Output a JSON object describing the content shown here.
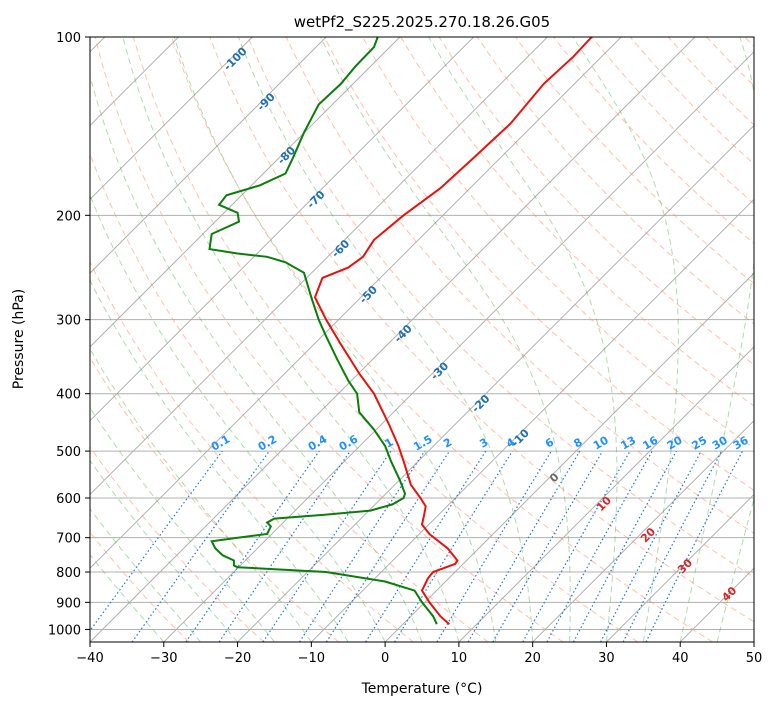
{
  "chart_data": {
    "type": "line",
    "title": "wetPf2_S225.2025.270.18.26.G05",
    "xlabel": "Temperature (°C)",
    "ylabel": "Pressure (hPa)",
    "xlim": [
      -40,
      50
    ],
    "ylim": [
      1050,
      100
    ],
    "y_scale": "log",
    "grid": true,
    "x_ticks": [
      -40,
      -30,
      -20,
      -10,
      0,
      10,
      20,
      30,
      40,
      50
    ],
    "y_ticks": [
      1000,
      900,
      800,
      700,
      600,
      500,
      400,
      300,
      200,
      100
    ],
    "series": [
      {
        "color": "#e8120c",
        "points": [
          [
            8.7,
            980
          ],
          [
            7.5,
            950
          ],
          [
            6.0,
            900
          ],
          [
            5.0,
            860
          ],
          [
            5.8,
            820
          ],
          [
            6.5,
            800
          ],
          [
            9.5,
            775
          ],
          [
            9.8,
            765
          ],
          [
            8.5,
            730
          ],
          [
            6.0,
            690
          ],
          [
            5.0,
            665
          ],
          [
            5.3,
            640
          ],
          [
            5.5,
            620
          ],
          [
            4.8,
            600
          ],
          [
            3.5,
            570
          ],
          [
            2.5,
            520
          ],
          [
            1.8,
            490
          ],
          [
            0.5,
            450
          ],
          [
            -1.5,
            400
          ],
          [
            -3.5,
            370
          ],
          [
            -6.0,
            330
          ],
          [
            -8.0,
            300
          ],
          [
            -9.5,
            275
          ],
          [
            -8.5,
            255
          ],
          [
            -5.0,
            245
          ],
          [
            -3.0,
            235
          ],
          [
            -1.5,
            220
          ],
          [
            2.5,
            200
          ],
          [
            7.5,
            180
          ],
          [
            12.0,
            160
          ],
          [
            17.0,
            140
          ],
          [
            21.5,
            120
          ],
          [
            25.5,
            108
          ],
          [
            28.0,
            100
          ]
        ]
      },
      {
        "color": "#0a7d0a",
        "points": [
          [
            7.0,
            980
          ],
          [
            6.5,
            950
          ],
          [
            5.0,
            900
          ],
          [
            4.0,
            860
          ],
          [
            0.0,
            830
          ],
          [
            -8.0,
            800
          ],
          [
            -20.0,
            785
          ],
          [
            -20.5,
            780
          ],
          [
            -20.5,
            765
          ],
          [
            -22.0,
            750
          ],
          [
            -23.0,
            730
          ],
          [
            -23.5,
            710
          ],
          [
            -20.0,
            700
          ],
          [
            -16.0,
            690
          ],
          [
            -15.5,
            670
          ],
          [
            -16.0,
            660
          ],
          [
            -15.0,
            650
          ],
          [
            -8.0,
            640
          ],
          [
            -2.0,
            630
          ],
          [
            1.0,
            615
          ],
          [
            2.5,
            600
          ],
          [
            2.7,
            590
          ],
          [
            2.0,
            560
          ],
          [
            0.8,
            520
          ],
          [
            0.0,
            490
          ],
          [
            -1.5,
            460
          ],
          [
            -3.5,
            430
          ],
          [
            -3.8,
            400
          ],
          [
            -5.0,
            380
          ],
          [
            -6.5,
            350
          ],
          [
            -8.0,
            320
          ],
          [
            -9.0,
            300
          ],
          [
            -10.0,
            275
          ],
          [
            -11.0,
            250
          ],
          [
            -13.5,
            240
          ],
          [
            -16.0,
            235
          ],
          [
            -20.0,
            232
          ],
          [
            -23.8,
            228
          ],
          [
            -23.5,
            215
          ],
          [
            -19.8,
            205
          ],
          [
            -20.0,
            198
          ],
          [
            -22.5,
            192
          ],
          [
            -21.5,
            185
          ],
          [
            -17.0,
            178
          ],
          [
            -13.5,
            170
          ],
          [
            -12.5,
            160
          ],
          [
            -11.0,
            145
          ],
          [
            -9.0,
            130
          ],
          [
            -6.0,
            120
          ],
          [
            -4.0,
            112
          ],
          [
            -1.5,
            104
          ],
          [
            -1.0,
            100
          ]
        ]
      }
    ],
    "annotations": {
      "mixing_ratio_labels": [
        "0.1",
        "0.2",
        "0.4",
        "0.6",
        "1",
        "1.5",
        "2",
        "3",
        "4",
        "6",
        "8",
        "10",
        "13",
        "16",
        "20",
        "25",
        "30",
        "36"
      ],
      "moist_adiabat_labels": [
        "-100",
        "-90",
        "-80",
        "-70",
        "-60",
        "-50",
        "-40",
        "-30",
        "-20",
        "-10",
        "0"
      ],
      "dry_adiabat_labels": [
        "10",
        "20",
        "30",
        "40"
      ]
    }
  }
}
